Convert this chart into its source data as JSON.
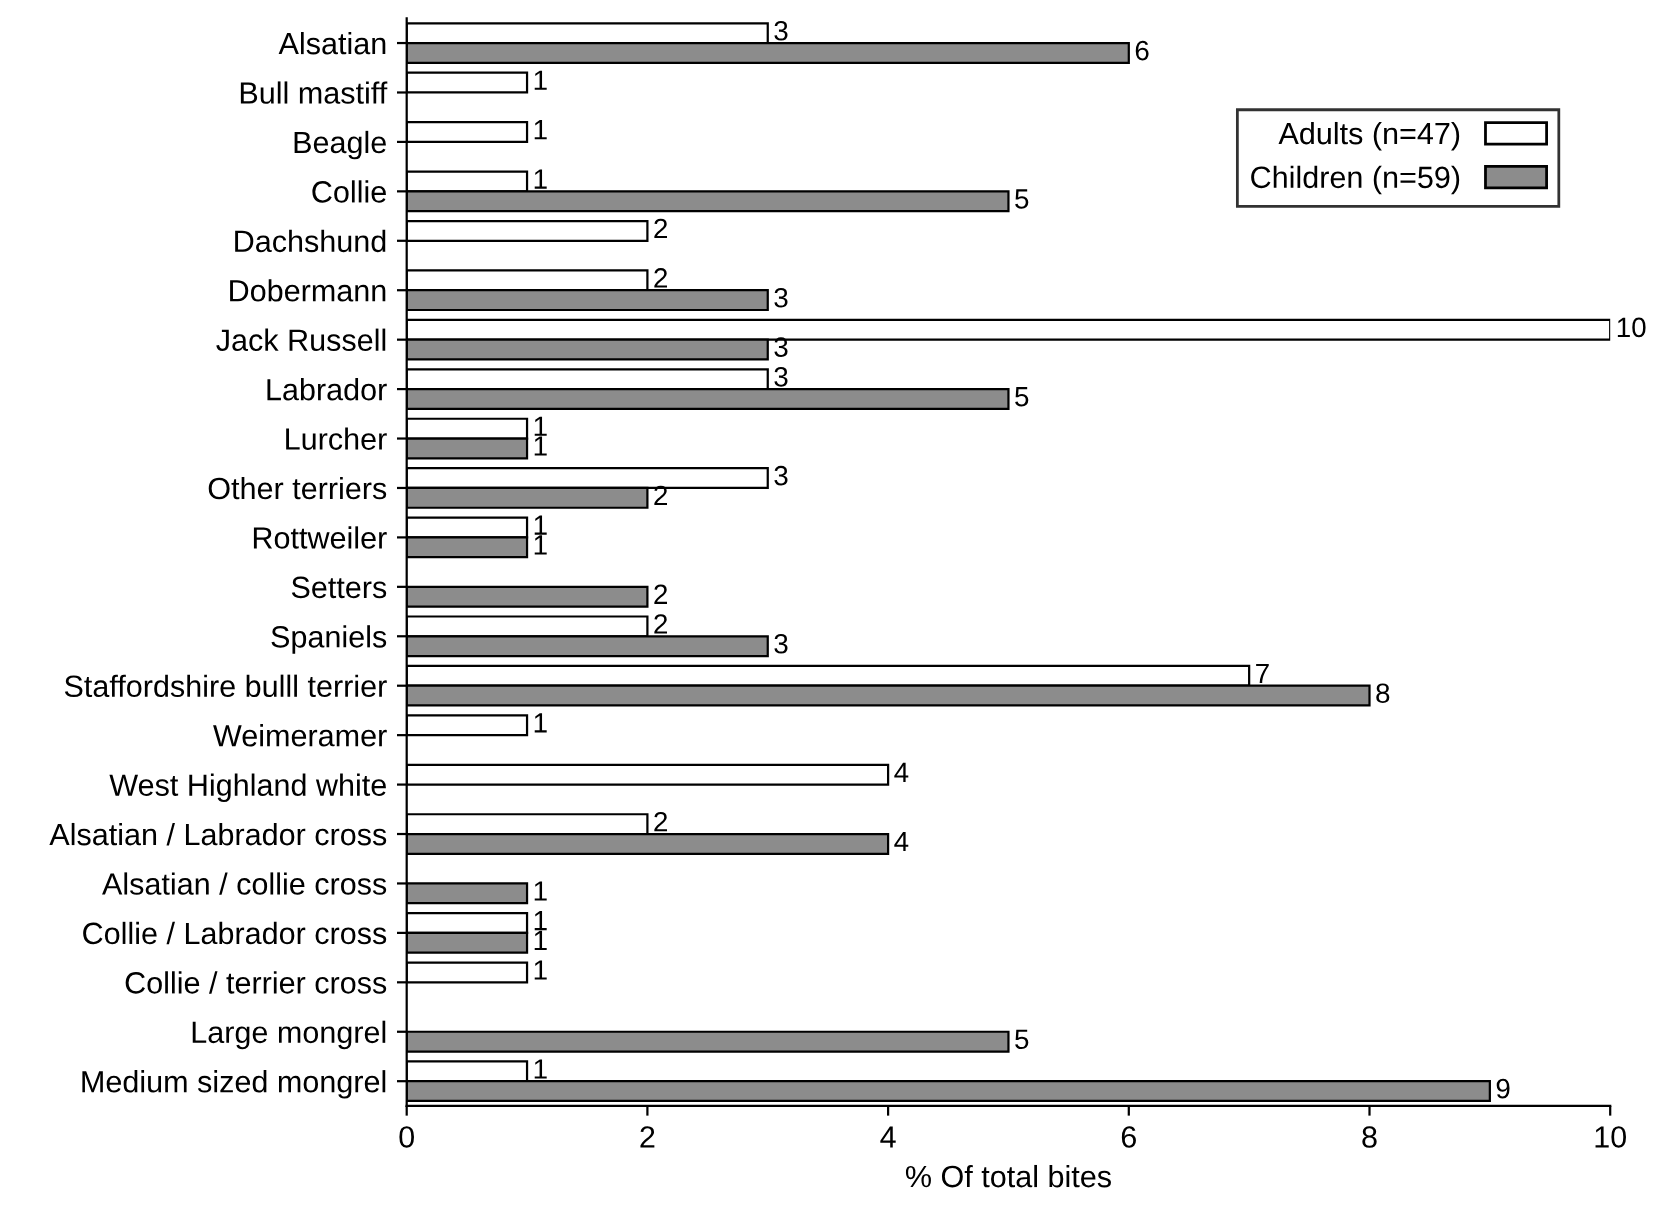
{
  "chart_data": {
    "type": "bar",
    "orientation": "horizontal",
    "xlabel": "% Of total bites",
    "categories": [
      "Alsatian",
      "Bull mastiff",
      "Beagle",
      "Collie",
      "Dachshund",
      "Dobermann",
      "Jack Russell",
      "Labrador",
      "Lurcher",
      "Other terriers",
      "Rottweiler",
      "Setters",
      "Spaniels",
      "Staffordshire bulll terrier",
      "Weimeramer",
      "West Highland white",
      "Alsatian / Labrador cross",
      "Alsatian / collie cross",
      "Collie / Labrador cross",
      "Collie / terrier cross",
      "Large mongrel",
      "Medium sized mongrel"
    ],
    "series": [
      {
        "name": "Adults (n=47)",
        "color": "#ffffff",
        "values": [
          3,
          1,
          1,
          1,
          2,
          2,
          10,
          3,
          1,
          3,
          1,
          null,
          2,
          7,
          1,
          4,
          2,
          null,
          1,
          1,
          null,
          1
        ]
      },
      {
        "name": "Children (n=59)",
        "color": "#8c8c8c",
        "values": [
          6,
          null,
          null,
          5,
          null,
          3,
          3,
          5,
          1,
          2,
          1,
          2,
          3,
          8,
          null,
          null,
          4,
          1,
          1,
          null,
          5,
          9
        ]
      }
    ],
    "xlim": [
      0,
      10
    ],
    "xticks": [
      0,
      2,
      4,
      6,
      8,
      10
    ],
    "data_labels": true,
    "grid": false,
    "legend": "top right"
  }
}
